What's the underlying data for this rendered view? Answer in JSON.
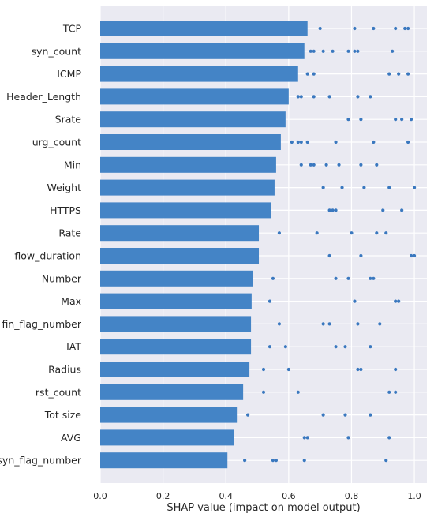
{
  "chart_data": {
    "type": "bar",
    "orientation": "horizontal",
    "xlabel": "SHAP value (impact on model output)",
    "ylabel": "",
    "xlim": [
      0.0,
      1.04
    ],
    "xticks": [
      "0.0",
      "0.2",
      "0.4",
      "0.6",
      "0.8",
      "1.0"
    ],
    "grid": true,
    "legend": "none",
    "colors": {
      "bar": "#4484c6",
      "dot": "#3a78bf",
      "panel": "#eaeaf2",
      "grid": "#ffffff"
    },
    "categories": [
      "TCP",
      "syn_count",
      "ICMP",
      "Header_Length",
      "Srate",
      "urg_count",
      "Min",
      "Weight",
      "HTTPS",
      "Rate",
      "flow_duration",
      "Number",
      "Max",
      "fin_flag_number",
      "IAT",
      "Radius",
      "rst_count",
      "Tot size",
      "AVG",
      "syn_flag_number"
    ],
    "values": [
      0.66,
      0.65,
      0.63,
      0.6,
      0.59,
      0.575,
      0.56,
      0.555,
      0.545,
      0.505,
      0.505,
      0.485,
      0.482,
      0.48,
      0.48,
      0.475,
      0.455,
      0.435,
      0.425,
      0.405
    ],
    "points": [
      [
        0.7,
        0.81,
        0.87,
        0.94,
        0.97,
        0.98
      ],
      [
        0.67,
        0.68,
        0.71,
        0.74,
        0.79,
        0.81,
        0.82,
        0.93
      ],
      [
        0.66,
        0.68,
        0.92,
        0.95,
        0.98
      ],
      [
        0.63,
        0.64,
        0.68,
        0.73,
        0.82,
        0.86
      ],
      [
        0.79,
        0.83,
        0.94,
        0.96,
        0.99
      ],
      [
        0.61,
        0.63,
        0.64,
        0.66,
        0.75,
        0.87,
        0.98
      ],
      [
        0.64,
        0.67,
        0.68,
        0.72,
        0.76,
        0.83,
        0.88
      ],
      [
        0.71,
        0.77,
        0.84,
        0.92,
        1.0
      ],
      [
        0.73,
        0.74,
        0.75,
        0.9,
        0.96
      ],
      [
        0.57,
        0.69,
        0.8,
        0.88,
        0.91
      ],
      [
        0.73,
        0.83,
        0.99,
        1.0
      ],
      [
        0.55,
        0.75,
        0.79,
        0.86,
        0.87
      ],
      [
        0.54,
        0.81,
        0.94,
        0.95
      ],
      [
        0.57,
        0.71,
        0.73,
        0.82,
        0.89
      ],
      [
        0.54,
        0.59,
        0.75,
        0.78,
        0.86
      ],
      [
        0.52,
        0.6,
        0.82,
        0.83,
        0.94
      ],
      [
        0.52,
        0.63,
        0.92,
        0.94
      ],
      [
        0.47,
        0.71,
        0.78,
        0.86
      ],
      [
        0.65,
        0.66,
        0.79,
        0.92
      ],
      [
        0.46,
        0.55,
        0.56,
        0.65,
        0.91
      ]
    ]
  }
}
